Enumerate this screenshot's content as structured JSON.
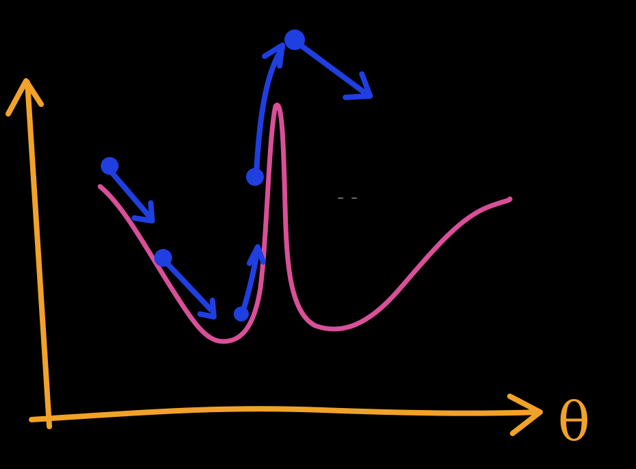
{
  "axes": {
    "x_label": "θ",
    "color": "#F2A229"
  },
  "curve": {
    "color": "#D94F98"
  },
  "gradient_steps": {
    "color": "#1F3FE0"
  },
  "icons": {
    "axis_arrow": "arrow-head",
    "step_marker": "filled-circle"
  }
}
